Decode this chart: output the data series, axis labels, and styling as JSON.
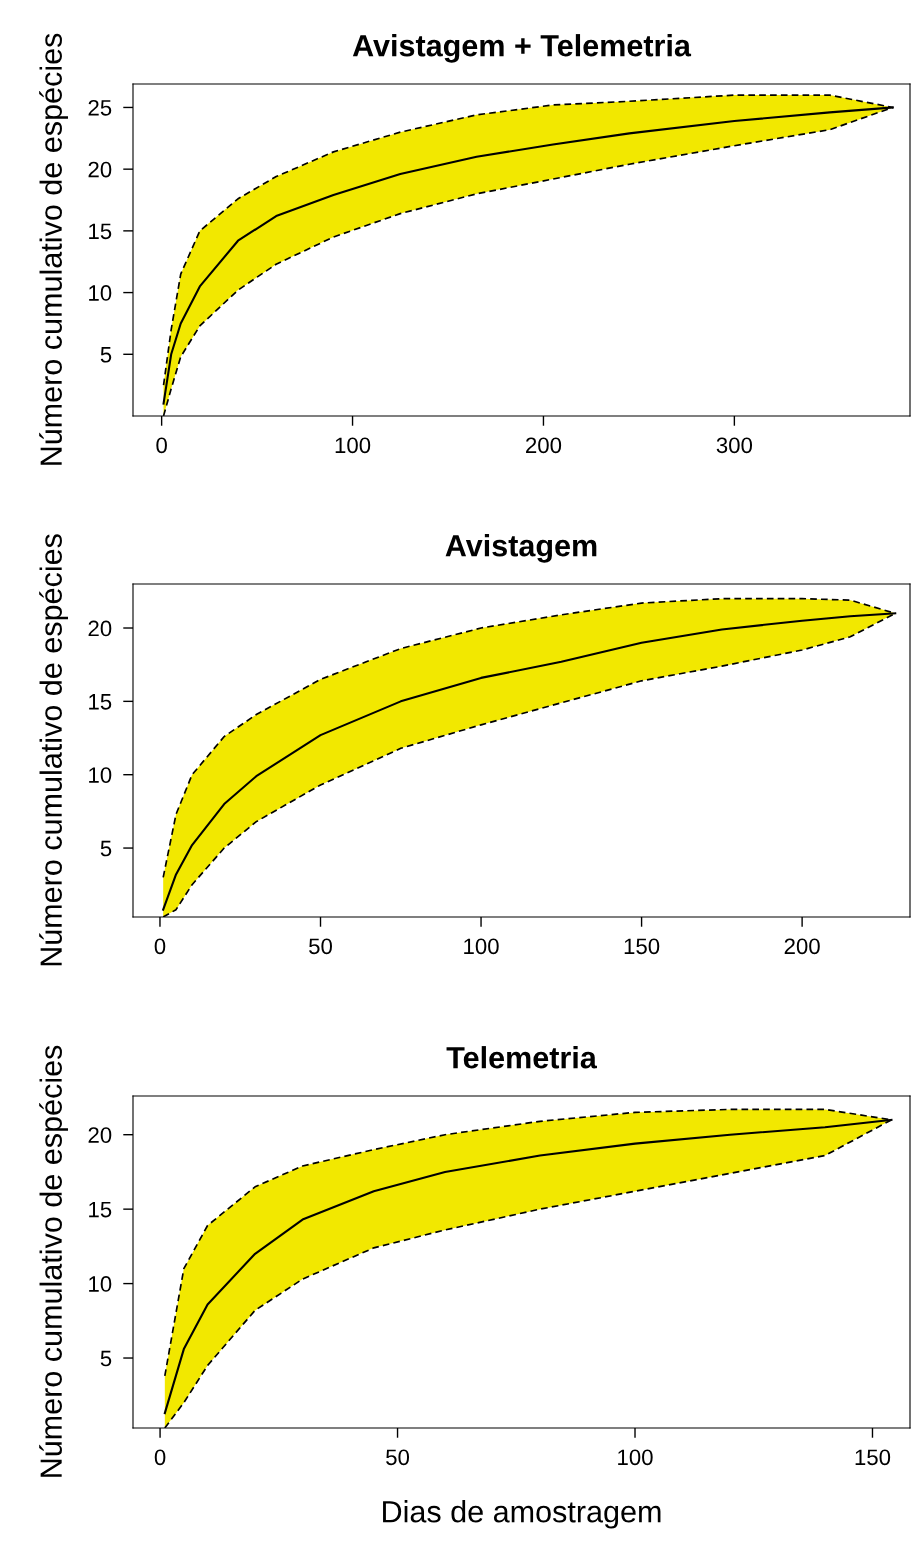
{
  "chart_data": [
    {
      "type": "line",
      "title": "Avistagem + Telemetria",
      "ylabel": "Número cumulativo de espécies",
      "xlim": [
        -15,
        392
      ],
      "ylim": [
        0,
        26.9
      ],
      "xticks": [
        0,
        100,
        200,
        300
      ],
      "yticks": [
        5,
        10,
        15,
        20,
        25
      ],
      "x": [
        1,
        5,
        10,
        20,
        40,
        60,
        90,
        125,
        165,
        205,
        245,
        300,
        350,
        383
      ],
      "series": [
        {
          "color": "#000000",
          "values": [
            1,
            5.0,
            7.5,
            10.5,
            14.2,
            16.2,
            17.9,
            19.6,
            21.0,
            22.0,
            22.9,
            23.9,
            24.6,
            25
          ],
          "upper": [
            2.5,
            7.0,
            11.5,
            15.0,
            17.6,
            19.4,
            21.4,
            23.0,
            24.4,
            25.2,
            25.5,
            26.0,
            26.0,
            25
          ],
          "lower": [
            0,
            2.2,
            4.8,
            7.3,
            10.2,
            12.3,
            14.5,
            16.4,
            18.0,
            19.2,
            20.4,
            21.9,
            23.2,
            25
          ]
        },
        {
          "color": "#000000",
          "line_style": "dashed",
          "values": [
            2.5,
            7.0,
            11.5,
            15.0,
            17.6,
            19.4,
            21.4,
            23.0,
            24.4,
            25.2,
            25.5,
            26.0,
            26.0,
            25
          ]
        },
        {
          "color": "#000000",
          "line_style": "dashed",
          "values": [
            0,
            2.2,
            4.8,
            7.3,
            10.2,
            12.3,
            14.5,
            16.4,
            18.0,
            19.2,
            20.4,
            21.9,
            23.2,
            25
          ]
        }
      ]
    },
    {
      "type": "line",
      "title": "Avistagem",
      "ylabel": "Número cumulativo de espécies",
      "xlim": [
        -8.4,
        233.6
      ],
      "ylim": [
        0.3,
        23.0
      ],
      "xticks": [
        0,
        50,
        100,
        150,
        200
      ],
      "yticks": [
        5,
        10,
        15,
        20
      ],
      "x": [
        1,
        5,
        10,
        20,
        30,
        50,
        75,
        100,
        125,
        150,
        175,
        200,
        215,
        229
      ],
      "series": [
        {
          "color": "#000000",
          "values": [
            0.8,
            3.2,
            5.2,
            8.0,
            9.9,
            12.7,
            15.0,
            16.6,
            17.7,
            19.0,
            19.9,
            20.5,
            20.8,
            21
          ],
          "upper": [
            3.0,
            7.3,
            10.0,
            12.6,
            14.1,
            16.5,
            18.6,
            20.0,
            20.9,
            21.7,
            22.0,
            22.0,
            21.9,
            21
          ],
          "lower": [
            0.3,
            0.8,
            2.5,
            5.0,
            6.8,
            9.3,
            11.8,
            13.4,
            14.9,
            16.4,
            17.4,
            18.5,
            19.4,
            21
          ]
        },
        {
          "color": "#000000",
          "line_style": "dashed",
          "values": [
            3.0,
            7.3,
            10.0,
            12.6,
            14.1,
            16.5,
            18.6,
            20.0,
            20.9,
            21.7,
            22.0,
            22.0,
            21.9,
            21
          ]
        },
        {
          "color": "#000000",
          "line_style": "dashed",
          "values": [
            0.3,
            0.8,
            2.5,
            5.0,
            6.8,
            9.3,
            11.8,
            13.4,
            14.9,
            16.4,
            17.4,
            18.5,
            19.4,
            21
          ]
        }
      ]
    },
    {
      "type": "line",
      "title": "Telemetria",
      "ylabel": "Número cumulativo de espécies",
      "xlabel": "Dias de amostragem",
      "xlim": [
        -5.7,
        157.9
      ],
      "ylim": [
        0.3,
        22.6
      ],
      "xticks": [
        0,
        50,
        100,
        150
      ],
      "yticks": [
        5,
        10,
        15,
        20
      ],
      "x": [
        1,
        5,
        10,
        20,
        30,
        45,
        60,
        80,
        100,
        120,
        140,
        154
      ],
      "series": [
        {
          "color": "#000000",
          "values": [
            1.3,
            5.6,
            8.6,
            12.0,
            14.3,
            16.2,
            17.5,
            18.6,
            19.4,
            20.0,
            20.5,
            21
          ],
          "upper": [
            3.8,
            11.0,
            13.9,
            16.5,
            17.9,
            19.0,
            20.0,
            20.9,
            21.5,
            21.7,
            21.7,
            21
          ],
          "lower": [
            0.3,
            2.0,
            4.5,
            8.2,
            10.3,
            12.4,
            13.6,
            15.0,
            16.2,
            17.4,
            18.6,
            21
          ]
        },
        {
          "color": "#000000",
          "line_style": "dashed",
          "values": [
            3.8,
            11.0,
            13.9,
            16.5,
            17.9,
            19.0,
            20.0,
            20.9,
            21.5,
            21.7,
            21.7,
            21
          ]
        },
        {
          "color": "#000000",
          "line_style": "dashed",
          "values": [
            0.3,
            2.0,
            4.5,
            8.2,
            10.3,
            12.4,
            13.6,
            15.0,
            16.2,
            17.4,
            18.6,
            21
          ]
        }
      ]
    }
  ]
}
